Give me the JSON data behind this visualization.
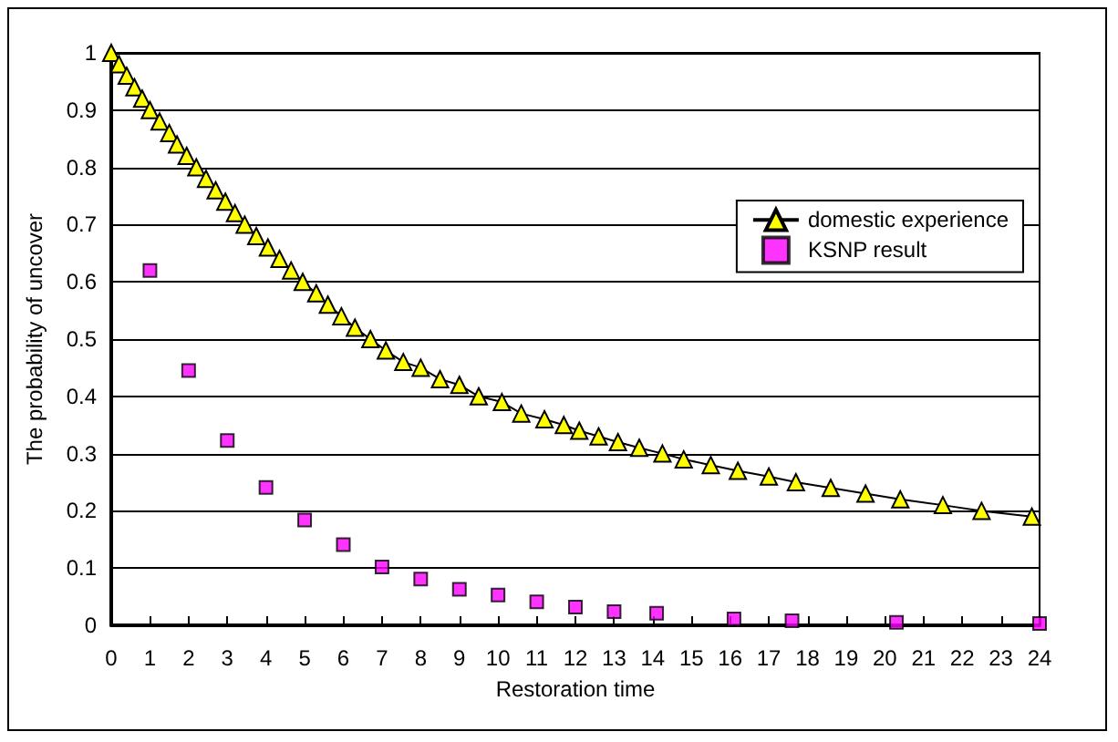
{
  "chart_data": {
    "type": "scatter",
    "xlabel": "Restoration time",
    "ylabel": "The probability of uncover",
    "xlim": [
      0,
      24
    ],
    "xticks": [
      0,
      1,
      2,
      3,
      4,
      5,
      6,
      7,
      8,
      9,
      10,
      11,
      12,
      13,
      14,
      15,
      16,
      17,
      18,
      19,
      20,
      21,
      22,
      23,
      24
    ],
    "ylim": [
      0,
      1
    ],
    "yticks": [
      0,
      0.1,
      0.2,
      0.3,
      0.4,
      0.5,
      0.6,
      0.7,
      0.8,
      0.9,
      1
    ],
    "grid": "y",
    "legend": "right",
    "series": [
      {
        "name": "domestic experience",
        "type": "line",
        "marker": "triangle",
        "color": "#ffff00",
        "x": [
          0,
          0.2,
          0.4,
          0.6,
          0.8,
          1.0,
          1.25,
          1.5,
          1.7,
          1.95,
          2.2,
          2.45,
          2.7,
          2.95,
          3.2,
          3.45,
          3.75,
          4.05,
          4.35,
          4.65,
          4.95,
          5.3,
          5.6,
          5.95,
          6.3,
          6.7,
          7.1,
          7.55,
          8.0,
          8.5,
          9.0,
          9.5,
          10.1,
          10.6,
          11.2,
          11.7,
          12.1,
          12.6,
          13.1,
          13.65,
          14.25,
          14.8,
          15.5,
          16.2,
          17.0,
          17.7,
          18.6,
          19.5,
          20.4,
          21.5,
          22.5,
          23.8
        ],
        "values": [
          1,
          0.98,
          0.96,
          0.94,
          0.92,
          0.9,
          0.88,
          0.86,
          0.84,
          0.82,
          0.8,
          0.78,
          0.76,
          0.74,
          0.72,
          0.7,
          0.68,
          0.66,
          0.64,
          0.62,
          0.6,
          0.58,
          0.56,
          0.54,
          0.52,
          0.5,
          0.48,
          0.46,
          0.45,
          0.43,
          0.42,
          0.4,
          0.39,
          0.37,
          0.36,
          0.35,
          0.34,
          0.33,
          0.32,
          0.31,
          0.3,
          0.29,
          0.28,
          0.27,
          0.26,
          0.25,
          0.24,
          0.23,
          0.22,
          0.21,
          0.2,
          0.19
        ]
      },
      {
        "name": "KSNP result",
        "marker": "square",
        "color": "#ff00ff",
        "x": [
          1,
          2,
          3,
          4,
          5,
          6,
          7,
          8,
          9,
          10,
          11,
          12,
          13,
          14.1,
          16.1,
          17.6,
          20.3,
          24
        ],
        "values": [
          0.62,
          0.445,
          0.323,
          0.241,
          0.184,
          0.141,
          0.102,
          0.081,
          0.063,
          0.053,
          0.041,
          0.032,
          0.024,
          0.021,
          0.011,
          0.008,
          0.005,
          0.003
        ]
      }
    ]
  }
}
